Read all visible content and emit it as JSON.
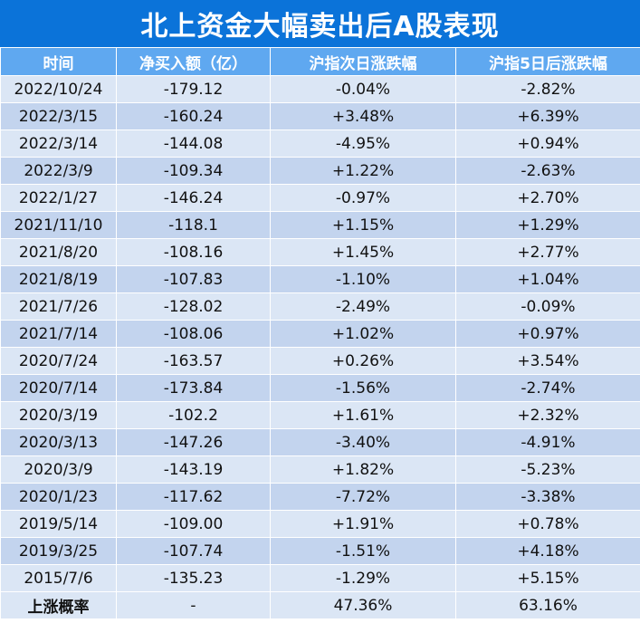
{
  "title": "北上资金大幅卖出后A股表现",
  "headers": [
    "时间",
    "净买入额（亿）",
    "沪指次日涨跌幅",
    "沪指5日后涨跌幅"
  ],
  "rows": [
    {
      "date": "2022/10/24",
      "net": "-179.12",
      "next_day": "-0.04%",
      "five_day": "-2.82%"
    },
    {
      "date": "2022/3/15",
      "net": "-160.24",
      "next_day": "+3.48%",
      "five_day": "+6.39%"
    },
    {
      "date": "2022/3/14",
      "net": "-144.08",
      "next_day": "-4.95%",
      "five_day": "+0.94%"
    },
    {
      "date": "2022/3/9",
      "net": "-109.34",
      "next_day": "+1.22%",
      "five_day": "-2.63%"
    },
    {
      "date": "2022/1/27",
      "net": "-146.24",
      "next_day": "-0.97%",
      "five_day": "+2.70%"
    },
    {
      "date": "2021/11/10",
      "net": "-118.1",
      "next_day": "+1.15%",
      "five_day": "+1.29%"
    },
    {
      "date": "2021/8/20",
      "net": "-108.16",
      "next_day": "+1.45%",
      "five_day": "+2.77%"
    },
    {
      "date": "2021/8/19",
      "net": "-107.83",
      "next_day": "-1.10%",
      "five_day": "+1.04%"
    },
    {
      "date": "2021/7/26",
      "net": "-128.02",
      "next_day": "-2.49%",
      "five_day": "-0.09%"
    },
    {
      "date": "2021/7/14",
      "net": "-108.06",
      "next_day": "+1.02%",
      "five_day": "+0.97%"
    },
    {
      "date": "2020/7/24",
      "net": "-163.57",
      "next_day": "+0.26%",
      "five_day": "+3.54%"
    },
    {
      "date": "2020/7/14",
      "net": "-173.84",
      "next_day": "-1.56%",
      "five_day": "-2.74%"
    },
    {
      "date": "2020/3/19",
      "net": "-102.2",
      "next_day": "+1.61%",
      "five_day": "+2.32%"
    },
    {
      "date": "2020/3/13",
      "net": "-147.26",
      "next_day": "-3.40%",
      "five_day": "-4.91%"
    },
    {
      "date": "2020/3/9",
      "net": "-143.19",
      "next_day": "+1.82%",
      "five_day": "-5.23%"
    },
    {
      "date": "2020/1/23",
      "net": "-117.62",
      "next_day": "-7.72%",
      "five_day": "-3.38%"
    },
    {
      "date": "2019/5/14",
      "net": "-109.00",
      "next_day": "+1.91%",
      "five_day": "+0.78%"
    },
    {
      "date": "2019/3/25",
      "net": "-107.74",
      "next_day": "-1.51%",
      "five_day": "+4.18%"
    },
    {
      "date": "2015/7/6",
      "net": "-135.23",
      "next_day": "-1.29%",
      "five_day": "+5.15%"
    }
  ],
  "footer": {
    "label": "上涨概率",
    "net": "-",
    "next_day": "47.36%",
    "five_day": "63.16%"
  },
  "colors": {
    "title_bg": "#0b73d9",
    "header_bg": "#5fa8f0",
    "row_light": "#dbe6f5",
    "row_dark": "#c3d4ee",
    "up": "#e0201e",
    "down": "#12a24a"
  }
}
